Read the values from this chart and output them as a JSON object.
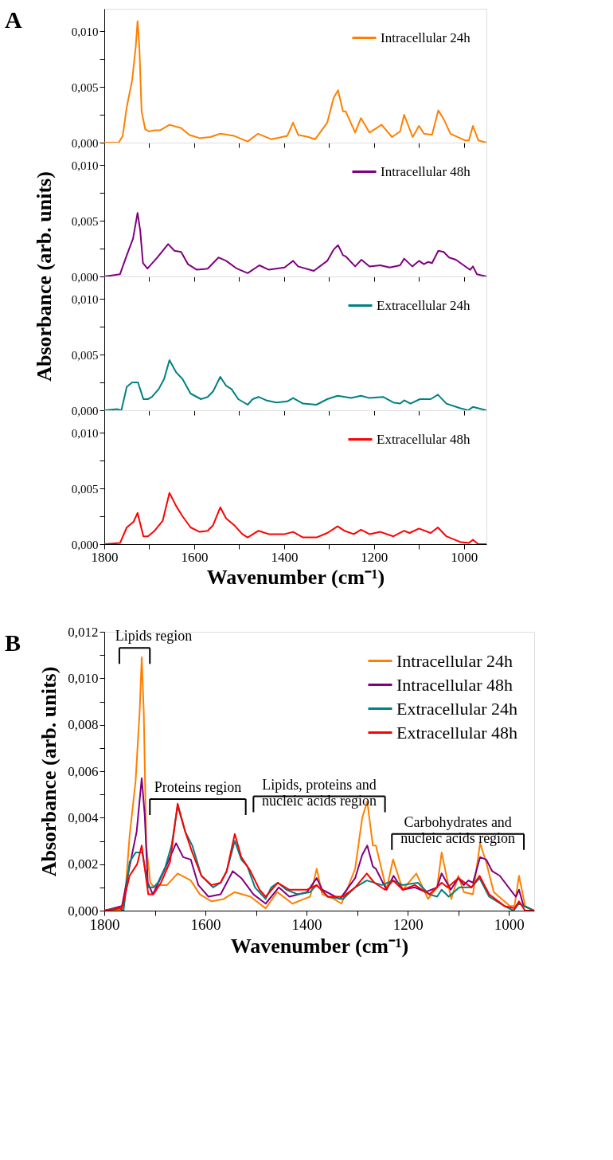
{
  "chart_data": [
    {
      "type": "line",
      "ylabel": "Absorbance (arb. units)",
      "annotations": [
        "A"
      ],
      "legend": "top right",
      "tick_labels": "y",
      "grid": false,
      "xlim": [
        1800,
        950
      ],
      "xticks": [
        1800,
        {
          "value": 1700,
          "label": null
        },
        1600,
        {
          "value": 1500,
          "label": null
        },
        1400,
        {
          "value": 1300,
          "label": null
        },
        1200,
        {
          "value": 1100,
          "label": null
        },
        1000
      ],
      "ylim": [
        0,
        0.012
      ],
      "yticks": [
        {
          "value": 0,
          "label": "0,000"
        },
        {
          "value": 0.0025,
          "label": null
        },
        {
          "value": 0.005,
          "label": "0,005"
        },
        {
          "value": 0.0075,
          "label": null
        },
        {
          "value": 0.01,
          "label": "0,010"
        }
      ],
      "series": [
        {
          "name": "Intracellular 24h",
          "color": "#ff8000",
          "x": [
            1800,
            1768,
            1759,
            1750,
            1738,
            1730,
            1726,
            1722,
            1717,
            1709,
            1701,
            1688,
            1676,
            1655,
            1629,
            1611,
            1588,
            1564,
            1542,
            1511,
            1481,
            1458,
            1428,
            1405,
            1393,
            1380,
            1369,
            1346,
            1331,
            1304,
            1290,
            1280,
            1269,
            1263,
            1242,
            1229,
            1210,
            1183,
            1160,
            1142,
            1133,
            1114,
            1100,
            1089,
            1071,
            1057,
            1045,
            1030,
            998,
            989,
            980,
            968,
            950
          ],
          "values": [
            0,
            0,
            0.0006,
            0.0032,
            0.0056,
            0.0086,
            0.0109,
            0.0086,
            0.0028,
            0.0012,
            0.001,
            0.0011,
            0.0011,
            0.0016,
            0.0013,
            0.0007,
            0.0004,
            0.0005,
            0.0008,
            0.0006,
            0.0001,
            0.0008,
            0.0003,
            0.0005,
            0.0006,
            0.0018,
            0.0007,
            0.0005,
            0.0003,
            0.0018,
            0.004,
            0.0047,
            0.0028,
            0.0028,
            0.0009,
            0.0022,
            0.0009,
            0.0016,
            0.0005,
            0.001,
            0.0025,
            0.0005,
            0.0015,
            0.0008,
            0.0007,
            0.0029,
            0.0021,
            0.0008,
            0.0002,
            0.0002,
            0.0015,
            0.0002,
            0
          ]
        }
      ]
    },
    {
      "type": "line",
      "legend": "top right",
      "tick_labels": "y",
      "grid": false,
      "xlim": [
        1800,
        950
      ],
      "xticks": [
        1800,
        {
          "value": 1700,
          "label": null
        },
        1600,
        {
          "value": 1500,
          "label": null
        },
        1400,
        {
          "value": 1300,
          "label": null
        },
        1200,
        {
          "value": 1100,
          "label": null
        },
        1000
      ],
      "ylim": [
        0,
        0.012
      ],
      "yticks": [
        {
          "value": 0,
          "label": "0,000"
        },
        {
          "value": 0.0025,
          "label": null
        },
        {
          "value": 0.005,
          "label": "0,005"
        },
        {
          "value": 0.0075,
          "label": null
        },
        {
          "value": 0.01,
          "label": "0,010"
        }
      ],
      "series": [
        {
          "name": "Intracellular 48h",
          "color": "#800080",
          "x": [
            1800,
            1765,
            1750,
            1736,
            1726,
            1720,
            1714,
            1704,
            1682,
            1658,
            1644,
            1629,
            1614,
            1594,
            1570,
            1546,
            1529,
            1505,
            1481,
            1455,
            1434,
            1399,
            1380,
            1369,
            1334,
            1304,
            1290,
            1280,
            1269,
            1263,
            1242,
            1228,
            1210,
            1186,
            1165,
            1142,
            1133,
            1115,
            1100,
            1089,
            1080,
            1071,
            1057,
            1045,
            1033,
            1018,
            990,
            986,
            980,
            971,
            950
          ],
          "values": [
            0,
            0.0002,
            0.0019,
            0.0034,
            0.0057,
            0.0041,
            0.0012,
            0.0007,
            0.0017,
            0.0029,
            0.0023,
            0.0022,
            0.0011,
            0.0006,
            0.0007,
            0.0017,
            0.0014,
            0.0007,
            0.0003,
            0.001,
            0.0006,
            0.0008,
            0.0014,
            0.0009,
            0.0005,
            0.0014,
            0.0024,
            0.0028,
            0.0019,
            0.0018,
            0.0009,
            0.0015,
            0.0009,
            0.001,
            0.0008,
            0.001,
            0.0016,
            0.0009,
            0.0014,
            0.0011,
            0.0013,
            0.0012,
            0.0023,
            0.0022,
            0.0017,
            0.0015,
            0.0007,
            0.0006,
            0.0009,
            0.0002,
            0
          ]
        }
      ]
    },
    {
      "type": "line",
      "legend": "top right",
      "tick_labels": "y",
      "grid": false,
      "xlim": [
        1800,
        950
      ],
      "xticks": [
        1800,
        {
          "value": 1700,
          "label": null
        },
        1600,
        {
          "value": 1500,
          "label": null
        },
        1400,
        {
          "value": 1300,
          "label": null
        },
        1200,
        {
          "value": 1100,
          "label": null
        },
        1000
      ],
      "ylim": [
        0,
        0.012
      ],
      "yticks": [
        {
          "value": 0,
          "label": "0,000"
        },
        {
          "value": 0.0025,
          "label": null
        },
        {
          "value": 0.005,
          "label": "0,005"
        },
        {
          "value": 0.0075,
          "label": null
        },
        {
          "value": 0.01,
          "label": "0,010"
        }
      ],
      "series": [
        {
          "name": "Extracellular 24h",
          "color": "#008080",
          "x": [
            1800,
            1771,
            1762,
            1750,
            1738,
            1725,
            1713,
            1703,
            1694,
            1679,
            1667,
            1655,
            1640,
            1626,
            1608,
            1585,
            1570,
            1558,
            1542,
            1529,
            1517,
            1502,
            1481,
            1470,
            1457,
            1440,
            1417,
            1393,
            1380,
            1358,
            1328,
            1304,
            1281,
            1251,
            1229,
            1210,
            1180,
            1157,
            1142,
            1133,
            1119,
            1098,
            1074,
            1058,
            1039,
            1009,
            991,
            980,
            950
          ],
          "values": [
            0,
            0.0001,
            0,
            0.0021,
            0.0025,
            0.0025,
            0.001,
            0.001,
            0.0012,
            0.0019,
            0.0028,
            0.0045,
            0.0034,
            0.0028,
            0.0015,
            0.001,
            0.0012,
            0.0017,
            0.003,
            0.0022,
            0.0019,
            0.001,
            0.0005,
            0.001,
            0.0012,
            0.0009,
            0.0007,
            0.0008,
            0.0011,
            0.0006,
            0.0005,
            0.001,
            0.0013,
            0.0011,
            0.0013,
            0.0011,
            0.0012,
            0.0007,
            0.0006,
            0.0009,
            0.0006,
            0.001,
            0.001,
            0.0014,
            0.0006,
            0.0002,
            0,
            0.0003,
            0
          ]
        }
      ]
    },
    {
      "type": "line",
      "xlabel": "Wavenumber (cm⁻¹)",
      "legend": "top right",
      "grid": false,
      "xlim": [
        1800,
        950
      ],
      "xticks": [
        1800,
        {
          "value": 1700,
          "label": null
        },
        1600,
        {
          "value": 1500,
          "label": null
        },
        1400,
        {
          "value": 1300,
          "label": null
        },
        1200,
        {
          "value": 1100,
          "label": null
        },
        1000
      ],
      "ylim": [
        0,
        0.012
      ],
      "yticks": [
        {
          "value": 0,
          "label": "0,000"
        },
        {
          "value": 0.0025,
          "label": null
        },
        {
          "value": 0.005,
          "label": "0,005"
        },
        {
          "value": 0.0075,
          "label": null
        },
        {
          "value": 0.01,
          "label": "0,010"
        }
      ],
      "series": [
        {
          "name": "Extracellular 48h",
          "color": "#ff0000",
          "x": [
            1800,
            1765,
            1750,
            1735,
            1726,
            1713,
            1703,
            1688,
            1670,
            1655,
            1640,
            1626,
            1608,
            1588,
            1570,
            1558,
            1542,
            1529,
            1511,
            1493,
            1481,
            1457,
            1434,
            1399,
            1380,
            1358,
            1328,
            1304,
            1281,
            1266,
            1245,
            1229,
            1210,
            1186,
            1157,
            1133,
            1121,
            1100,
            1074,
            1058,
            1039,
            1009,
            989,
            980,
            968,
            950
          ],
          "values": [
            0,
            0.0001,
            0.0015,
            0.002,
            0.0028,
            0.0007,
            0.0007,
            0.0012,
            0.0021,
            0.0046,
            0.0034,
            0.0025,
            0.0015,
            0.0011,
            0.0012,
            0.0017,
            0.0033,
            0.0023,
            0.0017,
            0.0009,
            0.0006,
            0.0012,
            0.0009,
            0.0009,
            0.0011,
            0.0006,
            0.0006,
            0.001,
            0.0016,
            0.0012,
            0.0009,
            0.0013,
            0.0009,
            0.0011,
            0.0007,
            0.0012,
            0.001,
            0.0014,
            0.001,
            0.0015,
            0.0007,
            0.0002,
            0.0001,
            0.0004,
            0,
            0
          ]
        }
      ]
    },
    {
      "type": "line",
      "xlabel": "Wavenumber (cm⁻¹)",
      "ylabel": "Absorbance (arb. units)",
      "legend": "top right",
      "grid": false,
      "annotations": [
        "B",
        "Lipids region",
        "Proteins region",
        "Lipids, proteins and\nnucleic acids region",
        "Carbohydrates and\nnucleic acids region"
      ],
      "xlim": [
        1800,
        950
      ],
      "xticks": [
        1800,
        {
          "value": 1700,
          "label": null
        },
        1600,
        {
          "value": 1500,
          "label": null
        },
        1400,
        {
          "value": 1300,
          "label": null
        },
        1200,
        {
          "value": 1100,
          "label": null
        },
        1000
      ],
      "ylim": [
        0,
        0.012
      ],
      "yticks": [
        {
          "value": 0,
          "label": "0,000"
        },
        {
          "value": 0.001,
          "label": null
        },
        {
          "value": 0.002,
          "label": "0,002"
        },
        {
          "value": 0.003,
          "label": null
        },
        {
          "value": 0.004,
          "label": "0,004"
        },
        {
          "value": 0.005,
          "label": null
        },
        {
          "value": 0.006,
          "label": "0,006"
        },
        {
          "value": 0.007,
          "label": null
        },
        {
          "value": 0.008,
          "label": "0,008"
        },
        {
          "value": 0.009,
          "label": null
        },
        {
          "value": 0.01,
          "label": "0,010"
        },
        {
          "value": 0.011,
          "label": null
        },
        {
          "value": 0.012,
          "label": "0,012"
        }
      ],
      "series": [
        {
          "name": "Intracellular 24h",
          "color": "#ff8000",
          "x": [
            1800,
            1768,
            1759,
            1750,
            1738,
            1730,
            1726,
            1722,
            1717,
            1709,
            1701,
            1688,
            1676,
            1655,
            1629,
            1611,
            1588,
            1564,
            1542,
            1511,
            1481,
            1458,
            1428,
            1405,
            1393,
            1380,
            1369,
            1346,
            1331,
            1304,
            1290,
            1280,
            1269,
            1263,
            1242,
            1229,
            1210,
            1183,
            1160,
            1142,
            1133,
            1114,
            1100,
            1089,
            1071,
            1057,
            1045,
            1030,
            998,
            989,
            980,
            968,
            950
          ],
          "values": [
            0,
            0,
            0.0006,
            0.0032,
            0.0056,
            0.0086,
            0.0109,
            0.0086,
            0.0028,
            0.0012,
            0.001,
            0.0011,
            0.0011,
            0.0016,
            0.0013,
            0.0007,
            0.0004,
            0.0005,
            0.0008,
            0.0006,
            0.0001,
            0.0008,
            0.0003,
            0.0005,
            0.0006,
            0.0018,
            0.0007,
            0.0005,
            0.0003,
            0.0018,
            0.004,
            0.0047,
            0.0028,
            0.0028,
            0.0009,
            0.0022,
            0.0009,
            0.0016,
            0.0005,
            0.001,
            0.0025,
            0.0005,
            0.0015,
            0.0008,
            0.0007,
            0.0029,
            0.0021,
            0.0008,
            0.0002,
            0.0002,
            0.0015,
            0.0002,
            0
          ]
        },
        {
          "name": "Intracellular 48h",
          "color": "#800080",
          "x": [
            1800,
            1765,
            1750,
            1736,
            1726,
            1720,
            1714,
            1704,
            1682,
            1658,
            1644,
            1629,
            1614,
            1594,
            1570,
            1546,
            1529,
            1505,
            1481,
            1455,
            1434,
            1399,
            1380,
            1369,
            1334,
            1304,
            1290,
            1280,
            1269,
            1263,
            1242,
            1228,
            1210,
            1186,
            1165,
            1142,
            1133,
            1115,
            1100,
            1089,
            1080,
            1071,
            1057,
            1045,
            1033,
            1018,
            990,
            986,
            980,
            971,
            950
          ],
          "values": [
            0,
            0.0002,
            0.0019,
            0.0034,
            0.0057,
            0.0041,
            0.0012,
            0.0007,
            0.0017,
            0.0029,
            0.0023,
            0.0022,
            0.0011,
            0.0006,
            0.0007,
            0.0017,
            0.0014,
            0.0007,
            0.0003,
            0.001,
            0.0006,
            0.0008,
            0.0014,
            0.0009,
            0.0005,
            0.0014,
            0.0024,
            0.0028,
            0.0019,
            0.0018,
            0.0009,
            0.0015,
            0.0009,
            0.001,
            0.0008,
            0.001,
            0.0016,
            0.0009,
            0.0014,
            0.0011,
            0.0013,
            0.0012,
            0.0023,
            0.0022,
            0.0017,
            0.0015,
            0.0007,
            0.0006,
            0.0009,
            0.0002,
            0
          ]
        },
        {
          "name": "Extracellular 24h",
          "color": "#008080",
          "x": [
            1800,
            1771,
            1762,
            1750,
            1738,
            1725,
            1713,
            1703,
            1694,
            1679,
            1667,
            1655,
            1640,
            1626,
            1608,
            1585,
            1570,
            1558,
            1542,
            1529,
            1517,
            1502,
            1481,
            1470,
            1457,
            1440,
            1417,
            1393,
            1380,
            1358,
            1328,
            1304,
            1281,
            1251,
            1229,
            1210,
            1180,
            1157,
            1142,
            1133,
            1119,
            1098,
            1074,
            1058,
            1039,
            1009,
            991,
            980,
            950
          ],
          "values": [
            0,
            0.0001,
            0,
            0.0021,
            0.0025,
            0.0025,
            0.001,
            0.001,
            0.0012,
            0.0019,
            0.0028,
            0.0045,
            0.0034,
            0.0028,
            0.0015,
            0.001,
            0.0012,
            0.0017,
            0.003,
            0.0022,
            0.0019,
            0.001,
            0.0005,
            0.001,
            0.0012,
            0.0009,
            0.0007,
            0.0008,
            0.0011,
            0.0006,
            0.0005,
            0.001,
            0.0013,
            0.0011,
            0.0013,
            0.0011,
            0.0012,
            0.0007,
            0.0006,
            0.0009,
            0.0006,
            0.001,
            0.001,
            0.0014,
            0.0006,
            0.0002,
            0,
            0.0003,
            0
          ]
        },
        {
          "name": "Extracellular 48h",
          "color": "#ff0000",
          "x": [
            1800,
            1765,
            1750,
            1735,
            1726,
            1713,
            1703,
            1688,
            1670,
            1655,
            1640,
            1626,
            1608,
            1588,
            1570,
            1558,
            1542,
            1529,
            1511,
            1493,
            1481,
            1457,
            1434,
            1399,
            1380,
            1358,
            1328,
            1304,
            1281,
            1266,
            1245,
            1229,
            1210,
            1186,
            1157,
            1133,
            1121,
            1100,
            1074,
            1058,
            1039,
            1009,
            989,
            980,
            968,
            950
          ],
          "values": [
            0,
            0.0001,
            0.0015,
            0.002,
            0.0028,
            0.0007,
            0.0007,
            0.0012,
            0.0021,
            0.0046,
            0.0034,
            0.0025,
            0.0015,
            0.0011,
            0.0012,
            0.0017,
            0.0033,
            0.0023,
            0.0017,
            0.0009,
            0.0006,
            0.0012,
            0.0009,
            0.0009,
            0.0011,
            0.0006,
            0.0006,
            0.001,
            0.0016,
            0.0012,
            0.0009,
            0.0013,
            0.0009,
            0.0011,
            0.0007,
            0.0012,
            0.001,
            0.0014,
            0.001,
            0.0015,
            0.0007,
            0.0002,
            0.0001,
            0.0004,
            0,
            0
          ]
        }
      ]
    }
  ]
}
